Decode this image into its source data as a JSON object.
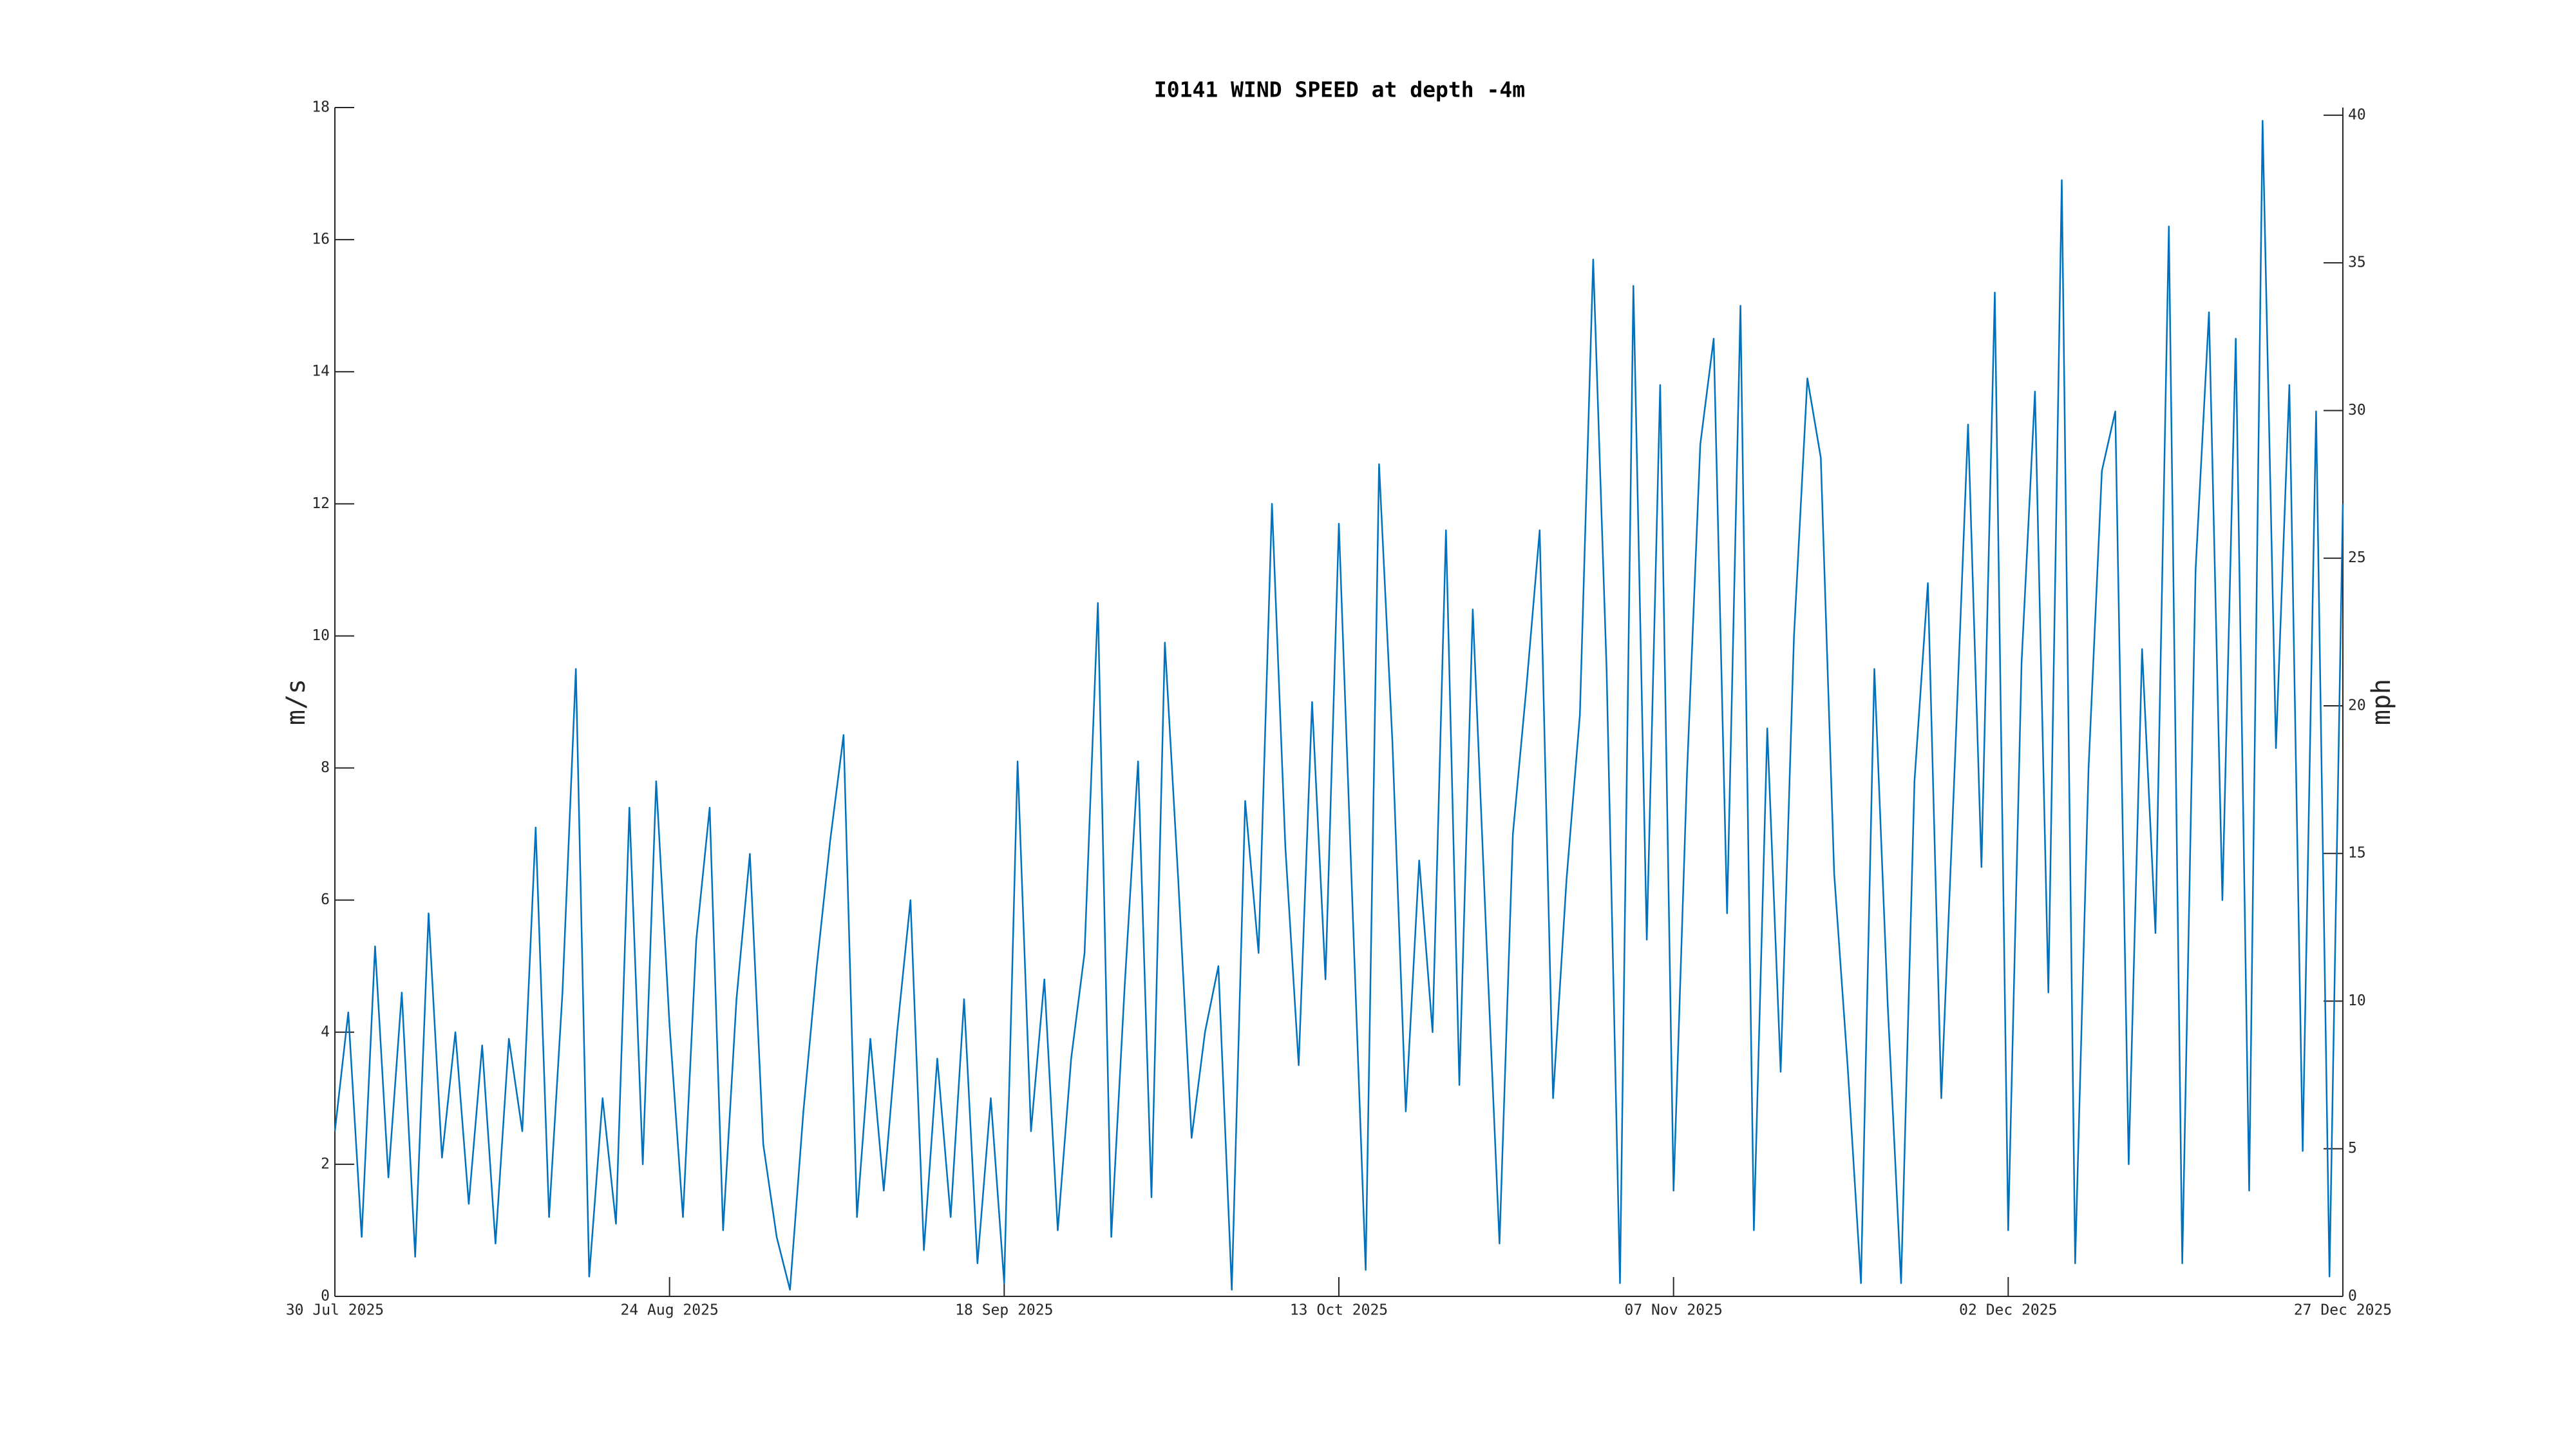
{
  "chart_data": {
    "type": "line",
    "title": "I0141 WIND SPEED at depth -4m",
    "ylabel": "m/s",
    "y2label": "mph",
    "x": [
      "2025-07-30",
      "2025-07-31",
      "2025-08-01",
      "2025-08-02",
      "2025-08-03",
      "2025-08-04",
      "2025-08-05",
      "2025-08-06",
      "2025-08-07",
      "2025-08-08",
      "2025-08-09",
      "2025-08-10",
      "2025-08-11",
      "2025-08-12",
      "2025-08-13",
      "2025-08-14",
      "2025-08-15",
      "2025-08-16",
      "2025-08-17",
      "2025-08-18",
      "2025-08-19",
      "2025-08-20",
      "2025-08-21",
      "2025-08-22",
      "2025-08-23",
      "2025-08-24",
      "2025-08-25",
      "2025-08-26",
      "2025-08-27",
      "2025-08-28",
      "2025-08-29",
      "2025-08-30",
      "2025-08-31",
      "2025-09-01",
      "2025-09-02",
      "2025-09-03",
      "2025-09-04",
      "2025-09-05",
      "2025-09-06",
      "2025-09-07",
      "2025-09-08",
      "2025-09-09",
      "2025-09-10",
      "2025-09-11",
      "2025-09-12",
      "2025-09-13",
      "2025-09-14",
      "2025-09-15",
      "2025-09-16",
      "2025-09-17",
      "2025-09-18",
      "2025-09-19",
      "2025-09-20",
      "2025-09-21",
      "2025-09-22",
      "2025-09-23",
      "2025-09-24",
      "2025-09-25",
      "2025-09-26",
      "2025-09-27",
      "2025-09-28",
      "2025-09-29",
      "2025-09-30",
      "2025-10-01",
      "2025-10-02",
      "2025-10-03",
      "2025-10-04",
      "2025-10-05",
      "2025-10-06",
      "2025-10-07",
      "2025-10-08",
      "2025-10-09",
      "2025-10-10",
      "2025-10-11",
      "2025-10-12",
      "2025-10-13",
      "2025-10-14",
      "2025-10-15",
      "2025-10-16",
      "2025-10-17",
      "2025-10-18",
      "2025-10-19",
      "2025-10-20",
      "2025-10-21",
      "2025-10-22",
      "2025-10-23",
      "2025-10-24",
      "2025-10-25",
      "2025-10-26",
      "2025-10-27",
      "2025-10-28",
      "2025-10-29",
      "2025-10-30",
      "2025-10-31",
      "2025-11-01",
      "2025-11-02",
      "2025-11-03",
      "2025-11-04",
      "2025-11-05",
      "2025-11-06",
      "2025-11-07",
      "2025-11-08",
      "2025-11-09",
      "2025-11-10",
      "2025-11-11",
      "2025-11-12",
      "2025-11-13",
      "2025-11-14",
      "2025-11-15",
      "2025-11-16",
      "2025-11-17",
      "2025-11-18",
      "2025-11-19",
      "2025-11-20",
      "2025-11-21",
      "2025-11-22",
      "2025-11-23",
      "2025-11-24",
      "2025-11-25",
      "2025-11-26",
      "2025-11-27",
      "2025-11-28",
      "2025-11-29",
      "2025-11-30",
      "2025-12-01",
      "2025-12-02",
      "2025-12-03",
      "2025-12-04",
      "2025-12-05",
      "2025-12-06",
      "2025-12-07",
      "2025-12-08",
      "2025-12-09",
      "2025-12-10",
      "2025-12-11",
      "2025-12-12",
      "2025-12-13",
      "2025-12-14",
      "2025-12-15",
      "2025-12-16",
      "2025-12-17",
      "2025-12-18",
      "2025-12-19",
      "2025-12-20",
      "2025-12-21",
      "2025-12-22",
      "2025-12-23",
      "2025-12-24",
      "2025-12-25",
      "2025-12-26",
      "2025-12-27"
    ],
    "series": [
      {
        "color": "#0072bd",
        "values": [
          2.5,
          4.3,
          0.9,
          5.3,
          1.8,
          4.6,
          0.6,
          5.8,
          2.1,
          4.0,
          1.4,
          3.8,
          0.8,
          3.9,
          2.5,
          7.1,
          1.2,
          4.6,
          9.5,
          0.3,
          3.0,
          1.1,
          7.4,
          2.0,
          7.8,
          4.1,
          1.2,
          5.4,
          7.4,
          1.0,
          4.5,
          6.7,
          2.3,
          0.9,
          0.1,
          2.8,
          5.0,
          6.9,
          8.5,
          1.2,
          3.9,
          1.6,
          4.0,
          6.0,
          0.7,
          3.6,
          1.2,
          4.5,
          0.5,
          3.0,
          0.2,
          8.1,
          2.5,
          4.8,
          1.0,
          3.6,
          5.2,
          10.5,
          0.9,
          4.7,
          8.1,
          1.5,
          9.9,
          6.3,
          2.4,
          4.0,
          5.0,
          0.1,
          7.5,
          5.2,
          12.0,
          6.8,
          3.5,
          9.0,
          4.8,
          11.7,
          6.0,
          0.4,
          12.6,
          8.4,
          2.8,
          6.6,
          4.0,
          11.6,
          3.2,
          10.4,
          5.5,
          0.8,
          7.0,
          9.2,
          11.6,
          3.0,
          6.3,
          8.8,
          15.7,
          9.5,
          0.2,
          15.3,
          5.4,
          13.8,
          1.6,
          7.9,
          12.9,
          14.5,
          5.8,
          15.0,
          1.0,
          8.6,
          3.4,
          10.0,
          13.9,
          12.7,
          6.4,
          3.5,
          0.2,
          9.5,
          4.4,
          0.2,
          7.8,
          10.8,
          3.0,
          8.0,
          13.2,
          6.5,
          15.2,
          1.0,
          9.6,
          13.7,
          4.6,
          16.9,
          0.5,
          8.0,
          12.5,
          13.4,
          2.0,
          9.8,
          5.5,
          16.2,
          0.5,
          11.0,
          14.9,
          6.0,
          14.5,
          1.6,
          17.8,
          8.3,
          13.8,
          2.2,
          13.4,
          0.3,
          12.0
        ]
      }
    ],
    "xlim": [
      "2025-07-30",
      "2025-12-27"
    ],
    "xticks": [
      {
        "value": "2025-07-30",
        "label": "30 Jul 2025"
      },
      {
        "value": "2025-08-24",
        "label": "24 Aug 2025"
      },
      {
        "value": "2025-09-18",
        "label": "18 Sep 2025"
      },
      {
        "value": "2025-10-13",
        "label": "13 Oct 2025"
      },
      {
        "value": "2025-11-07",
        "label": "07 Nov 2025"
      },
      {
        "value": "2025-12-02",
        "label": "02 Dec 2025"
      },
      {
        "value": "2025-12-27",
        "label": "27 Dec 2025"
      }
    ],
    "ylim": [
      0,
      18
    ],
    "yticks": [
      0,
      2,
      4,
      6,
      8,
      10,
      12,
      14,
      16,
      18
    ],
    "y2lim": [
      0,
      40.26
    ],
    "y2ticks": [
      0,
      5,
      10,
      15,
      20,
      25,
      30,
      35,
      40
    ],
    "grid": false
  }
}
